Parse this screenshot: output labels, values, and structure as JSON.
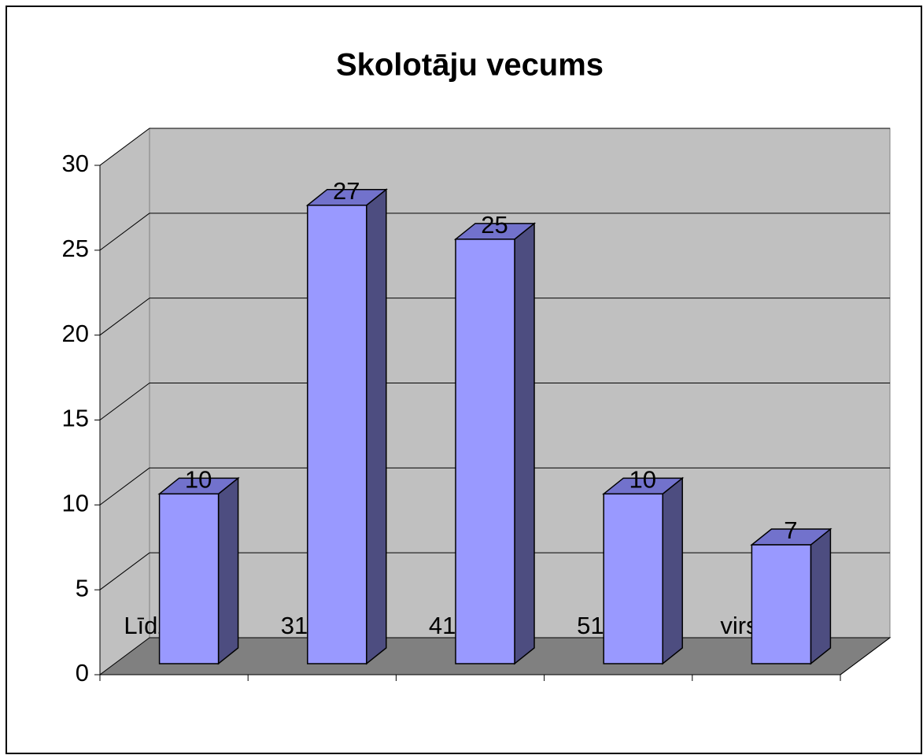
{
  "chart_data": {
    "type": "bar",
    "title": "Skolotāju vecums",
    "categories": [
      "Līdz 30g.",
      "31-40g.",
      "41-50g.",
      "51-60g.",
      "virs 60g."
    ],
    "values": [
      10,
      27,
      25,
      10,
      7
    ],
    "color": "#9999ff",
    "ylim": [
      0,
      30
    ],
    "yticks": [
      0,
      5,
      10,
      15,
      20,
      25,
      30
    ],
    "grid": true
  }
}
